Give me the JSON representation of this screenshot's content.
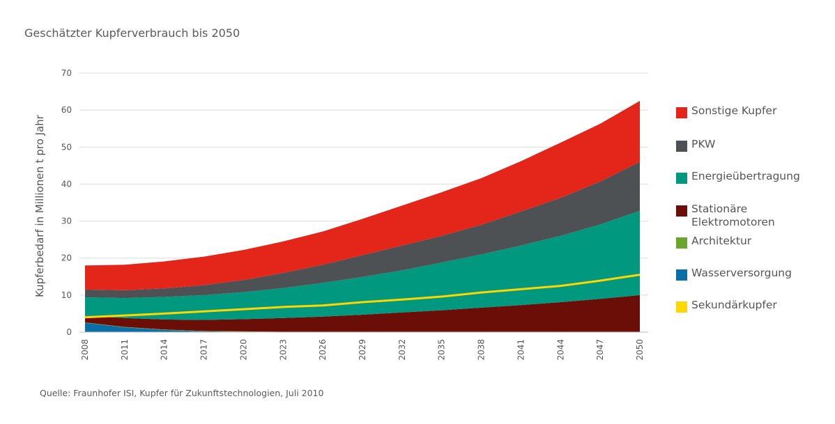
{
  "title": "Geschätzter Kupferverbrauch bis 2050",
  "source": "Quelle: Fraunhofer ISI, Kupfer für Zukunftstechnologien, Juli 2010",
  "chart_data": {
    "type": "area",
    "ylabel": "Kupferbedarf in Millionen t pro Jahr",
    "xlabel": "",
    "ylim": [
      0,
      70
    ],
    "yticks": [
      0,
      10,
      20,
      30,
      40,
      50,
      60,
      70
    ],
    "xlim": [
      2008,
      2050
    ],
    "xticks": [
      "2008",
      "2011",
      "2014",
      "2017",
      "2020",
      "2023",
      "2026",
      "2029",
      "2032",
      "2035",
      "2038",
      "2041",
      "2044",
      "2047",
      "2050"
    ],
    "grid": true,
    "legend_position": "right",
    "x": [
      2008,
      2011,
      2014,
      2017,
      2020,
      2023,
      2026,
      2029,
      2032,
      2035,
      2038,
      2041,
      2044,
      2047,
      2050
    ],
    "stacked_series": [
      {
        "name": "Wasserversorgung",
        "color": "#0a6fa8",
        "values": [
          2.5,
          1.3,
          0.6,
          0.2,
          0.1,
          0,
          0,
          0,
          0,
          0,
          0,
          0,
          0,
          0,
          0
        ]
      },
      {
        "name": "Architektur",
        "color": "#6aa62c",
        "values": [
          0.1,
          0.1,
          0.1,
          0.1,
          0.1,
          0.1,
          0,
          0,
          0,
          0,
          0,
          0,
          0,
          0,
          0
        ]
      },
      {
        "name": "Stationäre Elektromotoren",
        "color": "#6b0e08",
        "values": [
          1.8,
          2.4,
          2.7,
          3.0,
          3.3,
          3.7,
          4.2,
          4.7,
          5.3,
          5.9,
          6.6,
          7.3,
          8.1,
          9.0,
          10.0
        ]
      },
      {
        "name": "Energieübertragung",
        "color": "#00997f",
        "values": [
          5.0,
          5.4,
          6.1,
          6.7,
          7.3,
          8.1,
          9.1,
          10.2,
          11.4,
          12.9,
          14.4,
          16.1,
          17.9,
          20.1,
          22.8
        ]
      },
      {
        "name": "PKW",
        "color": "#4d5154",
        "values": [
          2.1,
          2.1,
          2.3,
          2.7,
          3.3,
          4.1,
          4.9,
          5.9,
          6.7,
          7.2,
          8.0,
          9.2,
          10.3,
          11.6,
          13.2
        ]
      },
      {
        "name": "Sonstige Kupfer",
        "color": "#e3251a",
        "values": [
          6.5,
          6.9,
          7.3,
          7.7,
          8.1,
          8.5,
          9.0,
          9.8,
          10.8,
          11.8,
          12.6,
          13.6,
          14.9,
          15.6,
          16.5
        ]
      }
    ],
    "line_series": {
      "name": "Sekundärkupfer",
      "color": "#ffd700",
      "values": [
        4.0,
        4.5,
        5.0,
        5.6,
        6.2,
        6.8,
        7.2,
        8.1,
        8.8,
        9.6,
        10.7,
        11.6,
        12.5,
        13.9,
        15.5
      ]
    },
    "legend": [
      {
        "label": "Sonstige Kupfer",
        "color": "#e3251a"
      },
      {
        "label": "PKW",
        "color": "#4d5154"
      },
      {
        "label": "Energieübertragung",
        "color": "#00997f"
      },
      {
        "label": "Stationäre\nElektromotoren",
        "color": "#6b0e08"
      },
      {
        "label": "Architektur",
        "color": "#6aa62c"
      },
      {
        "label": "Wasserversorgung",
        "color": "#0a6fa8"
      },
      {
        "label": "Sekundärkupfer",
        "color": "#ffd700"
      }
    ]
  }
}
